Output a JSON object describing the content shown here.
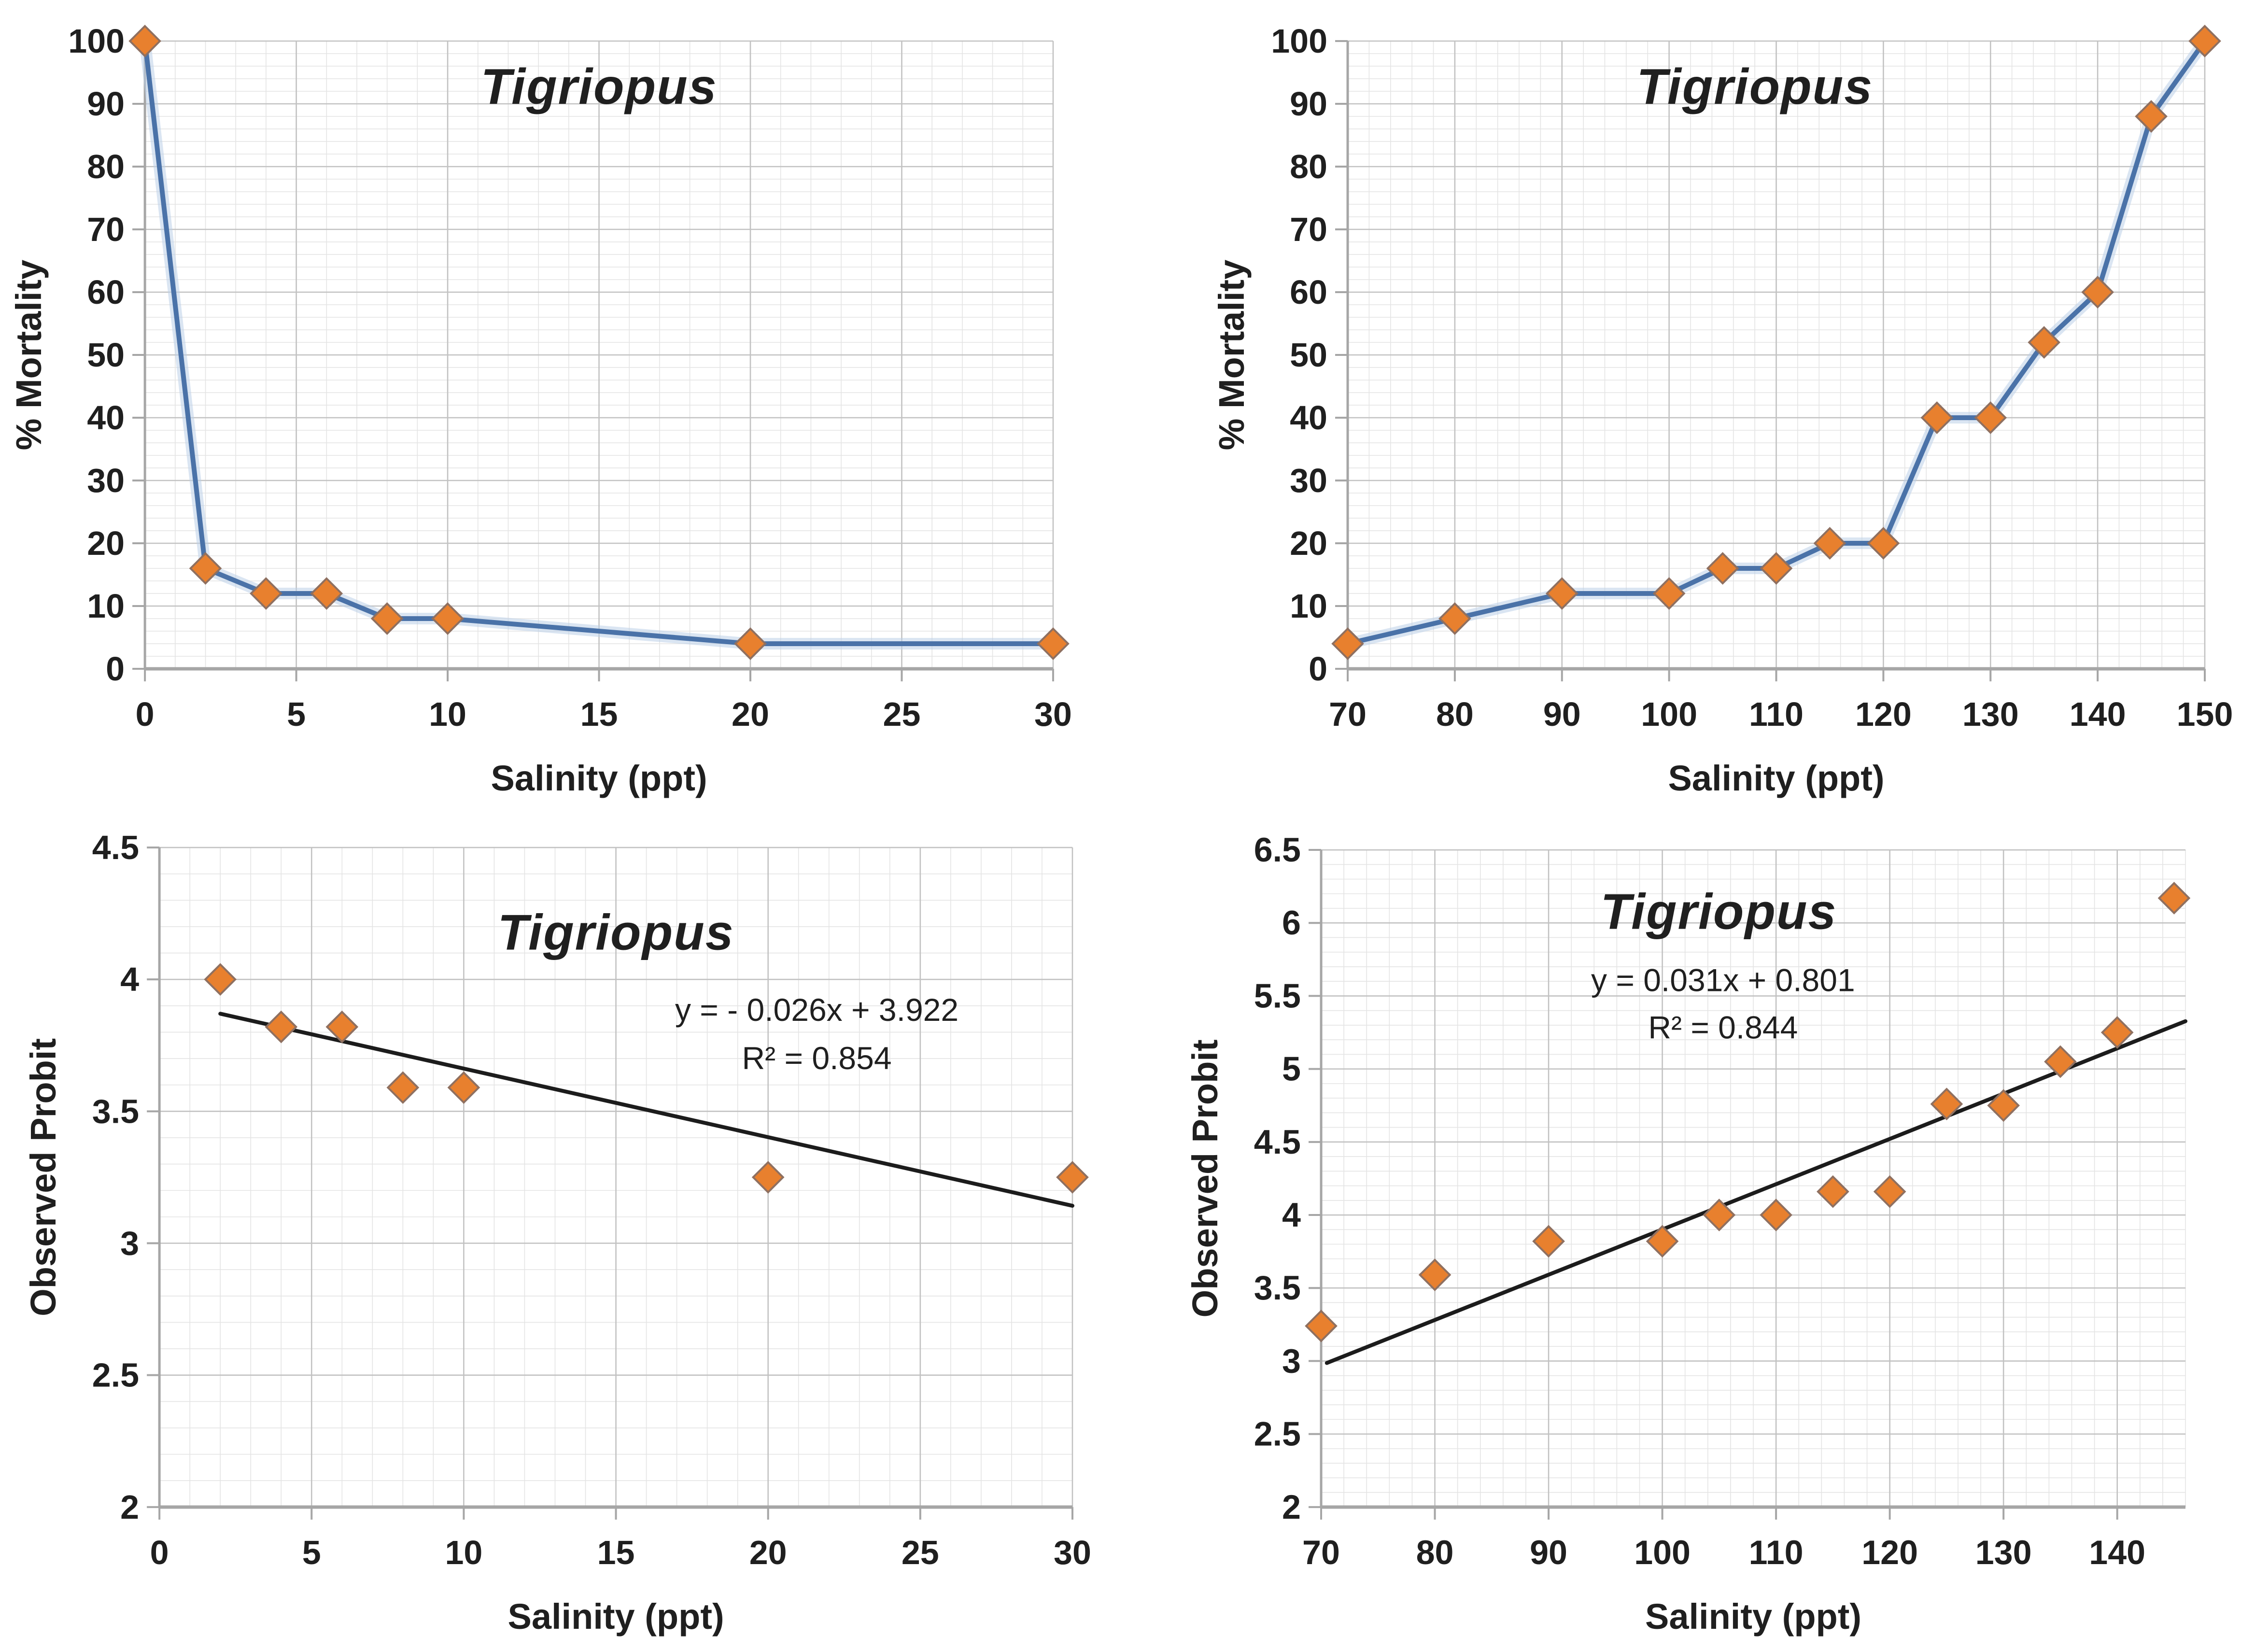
{
  "page": {
    "background": "#ffffff"
  },
  "colors": {
    "series_line": "#4a72a8",
    "series_glow": "#bcd0e8",
    "marker_fill": "#e8802e",
    "marker_stroke": "#8f7060",
    "trendline": "#1c1c1c",
    "grid_major": "#c2c2c2",
    "grid_minor": "#e4e4e4",
    "axis": "#a6a6a6",
    "text": "#1f1f1f"
  },
  "chart_data": [
    {
      "id": "mortality-low-salinity",
      "type": "line",
      "title": "Tigriopus",
      "xlabel": "Salinity (ppt)",
      "ylabel": "% Mortality",
      "x": [
        0,
        2,
        4,
        6,
        8,
        10,
        20,
        30
      ],
      "y": [
        100,
        16,
        12,
        12,
        8,
        8,
        4,
        4
      ],
      "xlim": [
        0,
        30
      ],
      "ylim": [
        0,
        100
      ],
      "xticks": [
        0,
        5,
        10,
        15,
        20,
        25,
        30
      ],
      "yticks": [
        0,
        10,
        20,
        30,
        40,
        50,
        60,
        70,
        80,
        90,
        100
      ],
      "x_minor_step": 1,
      "y_minor_step": 2,
      "grid": true,
      "marker": "diamond",
      "legend": "none"
    },
    {
      "id": "mortality-high-salinity",
      "type": "line",
      "title": "Tigriopus",
      "xlabel": "Salinity (ppt)",
      "ylabel": "% Mortality",
      "x": [
        70,
        80,
        90,
        100,
        105,
        110,
        115,
        120,
        125,
        130,
        135,
        140,
        145,
        150
      ],
      "y": [
        4,
        8,
        12,
        12,
        16,
        16,
        20,
        20,
        40,
        40,
        52,
        60,
        88,
        100
      ],
      "xlim": [
        70,
        150
      ],
      "ylim": [
        0,
        100
      ],
      "xticks": [
        70,
        80,
        90,
        100,
        110,
        120,
        130,
        140,
        150
      ],
      "yticks": [
        0,
        10,
        20,
        30,
        40,
        50,
        60,
        70,
        80,
        90,
        100
      ],
      "x_minor_step": 2,
      "y_minor_step": 2,
      "grid": true,
      "marker": "diamond",
      "legend": "none"
    },
    {
      "id": "probit-low-salinity",
      "type": "scatter",
      "title": "Tigriopus",
      "xlabel": "Salinity (ppt)",
      "ylabel": "Observed Probit",
      "x": [
        2,
        4,
        6,
        8,
        10,
        20,
        30
      ],
      "y": [
        4.0,
        3.82,
        3.82,
        3.59,
        3.59,
        3.25,
        3.25
      ],
      "xlim": [
        0,
        30
      ],
      "ylim": [
        2,
        4.5
      ],
      "xticks": [
        0,
        5,
        10,
        15,
        20,
        25,
        30
      ],
      "yticks": [
        2,
        2.5,
        3,
        3.5,
        4,
        4.5
      ],
      "x_minor_step": 1,
      "y_minor_step": 0.1,
      "grid": true,
      "marker": "diamond",
      "legend": "none",
      "trendline": {
        "slope": -0.026,
        "intercept": 3.922,
        "x_start": 2,
        "x_end": 30,
        "equation_text": "y = - 0.026x + 3.922",
        "r2_text": "R² = 0.854"
      }
    },
    {
      "id": "probit-high-salinity",
      "type": "scatter",
      "title": "Tigriopus",
      "xlabel": "Salinity (ppt)",
      "ylabel": "Observed Probit",
      "x": [
        70,
        80,
        90,
        100,
        105,
        110,
        115,
        120,
        125,
        130,
        135,
        140,
        145
      ],
      "y": [
        3.24,
        3.59,
        3.82,
        3.82,
        4.0,
        4.0,
        4.16,
        4.16,
        4.76,
        4.75,
        5.05,
        5.25,
        6.17
      ],
      "xlim": [
        70,
        146
      ],
      "ylim": [
        2,
        6.5
      ],
      "xticks": [
        70,
        80,
        90,
        100,
        110,
        120,
        130,
        140
      ],
      "yticks": [
        2,
        2.5,
        3,
        3.5,
        4,
        4.5,
        5,
        5.5,
        6,
        6.5
      ],
      "x_minor_step": 2,
      "y_minor_step": 0.1,
      "grid": true,
      "marker": "diamond",
      "legend": "none",
      "trendline": {
        "slope": 0.031,
        "intercept": 0.801,
        "x_start": 70.5,
        "x_end": 146,
        "equation_text": "y = 0.031x + 0.801",
        "r2_text": "R² = 0.844"
      }
    }
  ]
}
